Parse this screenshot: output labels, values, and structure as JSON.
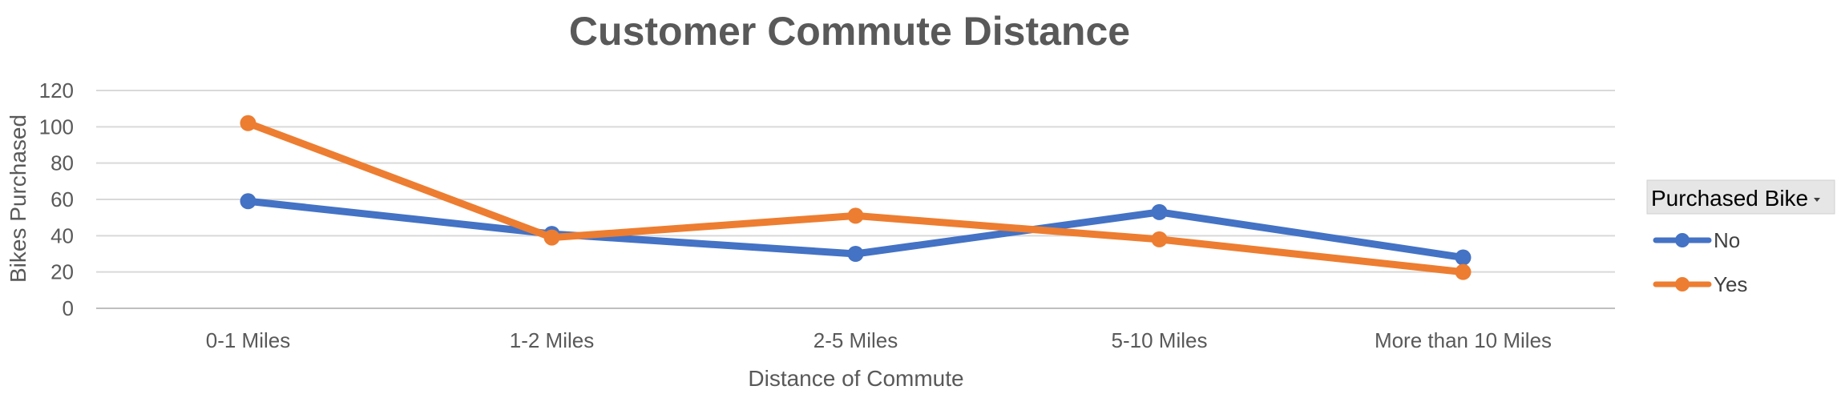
{
  "chart_data": {
    "type": "line",
    "title": "Customer Commute Distance",
    "xlabel": "Distance of Commute",
    "ylabel": "Bikes Purchased",
    "categories": [
      "0-1 Miles",
      "1-2 Miles",
      "2-5 Miles",
      "5-10 Miles",
      "More than 10 Miles"
    ],
    "ylim": [
      0,
      120
    ],
    "yticks": [
      0,
      20,
      40,
      60,
      80,
      100,
      120
    ],
    "grid": true,
    "legend_placement": "right",
    "legend_title": "Purchased Bike",
    "legend_dropdown_icon": "dropdown-arrow-icon",
    "series": [
      {
        "name": "No",
        "color": "#4472C4",
        "values": [
          59,
          41,
          30,
          53,
          28
        ]
      },
      {
        "name": "Yes",
        "color": "#ED7D31",
        "values": [
          102,
          39,
          51,
          38,
          20
        ]
      }
    ]
  }
}
